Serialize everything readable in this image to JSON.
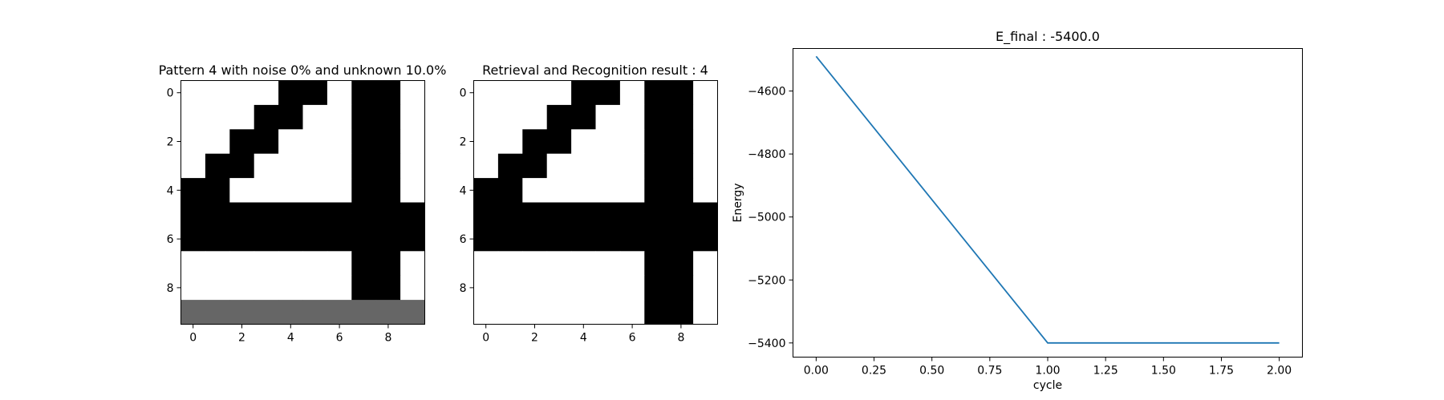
{
  "figure": {
    "panels": [
      {
        "title": "Pattern 4 with noise 0% and unknown 10.0%",
        "type": "image",
        "xticks": [
          "0",
          "2",
          "4",
          "6",
          "8"
        ],
        "yticks": [
          "0",
          "2",
          "4",
          "6",
          "8"
        ]
      },
      {
        "title": "Retrieval and Recognition result : 4",
        "type": "image",
        "xticks": [
          "0",
          "2",
          "4",
          "6",
          "8"
        ],
        "yticks": [
          "0",
          "2",
          "4",
          "6",
          "8"
        ]
      },
      {
        "title": "E_final : -5400.0",
        "type": "line",
        "xlabel": "cycle",
        "ylabel": "Energy",
        "xticks": [
          "0.00",
          "0.25",
          "0.50",
          "0.75",
          "1.00",
          "1.25",
          "1.50",
          "1.75",
          "2.00"
        ],
        "yticks": [
          "−4600",
          "−4800",
          "−5000",
          "−5200",
          "−5400"
        ]
      }
    ]
  },
  "chart_data": [
    {
      "type": "heatmap",
      "title": "Pattern 4 with noise 0% and unknown 10.0%",
      "value_legend": {
        "1": "black",
        "0": "white",
        "-1": "gray (unknown)"
      },
      "colors": {
        "on": "#000000",
        "off": "#ffffff",
        "unknown": "#666666"
      },
      "grid": [
        [
          0,
          0,
          0,
          0,
          1,
          1,
          0,
          1,
          1,
          0
        ],
        [
          0,
          0,
          0,
          1,
          1,
          0,
          0,
          1,
          1,
          0
        ],
        [
          0,
          0,
          1,
          1,
          0,
          0,
          0,
          1,
          1,
          0
        ],
        [
          0,
          1,
          1,
          0,
          0,
          0,
          0,
          1,
          1,
          0
        ],
        [
          1,
          1,
          0,
          0,
          0,
          0,
          0,
          1,
          1,
          0
        ],
        [
          1,
          1,
          1,
          1,
          1,
          1,
          1,
          1,
          1,
          1
        ],
        [
          1,
          1,
          1,
          1,
          1,
          1,
          1,
          1,
          1,
          1
        ],
        [
          0,
          0,
          0,
          0,
          0,
          0,
          0,
          1,
          1,
          0
        ],
        [
          0,
          0,
          0,
          0,
          0,
          0,
          0,
          1,
          1,
          0
        ],
        [
          -1,
          -1,
          -1,
          -1,
          -1,
          -1,
          -1,
          -1,
          -1,
          -1
        ]
      ]
    },
    {
      "type": "heatmap",
      "title": "Retrieval and Recognition result : 4",
      "value_legend": {
        "1": "black",
        "0": "white"
      },
      "colors": {
        "on": "#000000",
        "off": "#ffffff",
        "unknown": "#666666"
      },
      "grid": [
        [
          0,
          0,
          0,
          0,
          1,
          1,
          0,
          1,
          1,
          0
        ],
        [
          0,
          0,
          0,
          1,
          1,
          0,
          0,
          1,
          1,
          0
        ],
        [
          0,
          0,
          1,
          1,
          0,
          0,
          0,
          1,
          1,
          0
        ],
        [
          0,
          1,
          1,
          0,
          0,
          0,
          0,
          1,
          1,
          0
        ],
        [
          1,
          1,
          0,
          0,
          0,
          0,
          0,
          1,
          1,
          0
        ],
        [
          1,
          1,
          1,
          1,
          1,
          1,
          1,
          1,
          1,
          1
        ],
        [
          1,
          1,
          1,
          1,
          1,
          1,
          1,
          1,
          1,
          1
        ],
        [
          0,
          0,
          0,
          0,
          0,
          0,
          0,
          1,
          1,
          0
        ],
        [
          0,
          0,
          0,
          0,
          0,
          0,
          0,
          1,
          1,
          0
        ],
        [
          0,
          0,
          0,
          0,
          0,
          0,
          0,
          1,
          1,
          0
        ]
      ]
    },
    {
      "type": "line",
      "title": "E_final : -5400.0",
      "xlabel": "cycle",
      "ylabel": "Energy",
      "xlim": [
        -0.1,
        2.1
      ],
      "ylim": [
        -5445,
        -4465
      ],
      "grid": false,
      "color": "#1f77b4",
      "x": [
        0,
        1,
        2
      ],
      "y": [
        -4490,
        -5400,
        -5400
      ]
    }
  ]
}
